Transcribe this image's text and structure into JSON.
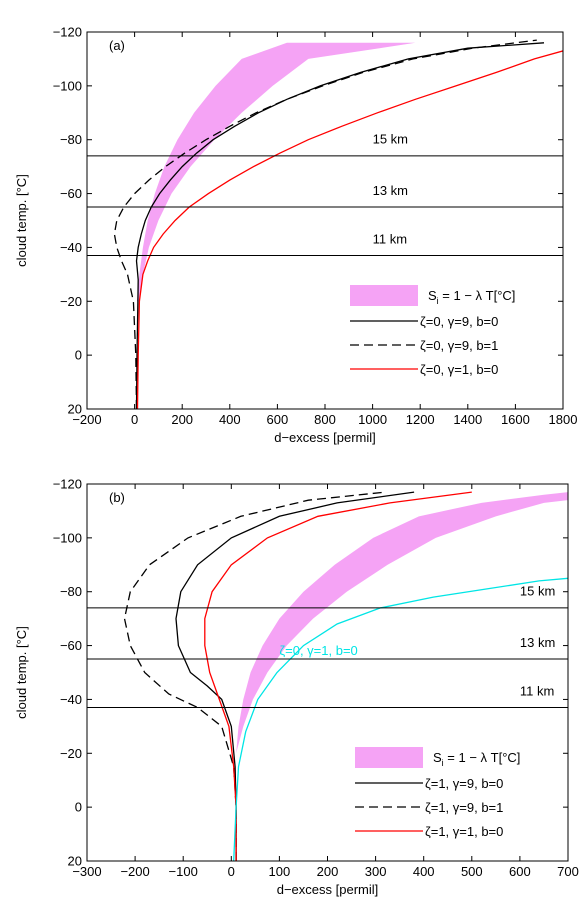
{
  "chart_data": [
    {
      "type": "line",
      "panel_label": "(a)",
      "xlabel": "d−excess [permil]",
      "ylabel": "cloud temp. [°C]",
      "xlim": [
        -200,
        1800
      ],
      "ylim": [
        20,
        -120
      ],
      "y_inverted": true,
      "xticks": [
        -200,
        0,
        200,
        400,
        600,
        800,
        1000,
        1200,
        1400,
        1600,
        1800
      ],
      "xtick_labels": [
        "−200",
        "0",
        "200",
        "400",
        "600",
        "800",
        "1000",
        "1200",
        "1400",
        "1600",
        "1800"
      ],
      "yticks": [
        -120,
        -100,
        -80,
        -60,
        -40,
        -20,
        0,
        20
      ],
      "ytick_labels": [
        "−120",
        "−100",
        "−80",
        "−60",
        "−40",
        "−20",
        "0",
        "20"
      ],
      "hlines": [
        {
          "y": -74,
          "label": "15 km",
          "label_x": 1000,
          "label_y": -80
        },
        {
          "y": -55,
          "label": "13 km",
          "label_x": 1000,
          "label_y": -61
        },
        {
          "y": -37,
          "label": "11 km",
          "label_x": 1000,
          "label_y": -43
        }
      ],
      "band": {
        "name": "S<sub>i</sub> = 1 − λ T[°C]",
        "name_main": "S",
        "name_sub": "i",
        "name_rest": " = 1 − λ T[°C]",
        "color": "#f5a3f5",
        "lower_edge": [
          [
            10,
            -20
          ],
          [
            20,
            -30
          ],
          [
            35,
            -40
          ],
          [
            55,
            -50
          ],
          [
            85,
            -60
          ],
          [
            125,
            -70
          ],
          [
            180,
            -80
          ],
          [
            250,
            -90
          ],
          [
            340,
            -100
          ],
          [
            450,
            -110
          ],
          [
            640,
            -116
          ]
        ],
        "upper_edge": [
          [
            20,
            -20
          ],
          [
            35,
            -30
          ],
          [
            60,
            -40
          ],
          [
            100,
            -50
          ],
          [
            155,
            -60
          ],
          [
            235,
            -70
          ],
          [
            335,
            -80
          ],
          [
            450,
            -90
          ],
          [
            580,
            -100
          ],
          [
            730,
            -110
          ],
          [
            1180,
            -116
          ]
        ]
      },
      "series": [
        {
          "name": "ζ=0, γ=9, b=0",
          "color": "#000000",
          "dash": "none",
          "points": [
            [
              8,
              20
            ],
            [
              10,
              0
            ],
            [
              14,
              -20
            ],
            [
              15,
              -28
            ],
            [
              10,
              -33
            ],
            [
              8,
              -35
            ],
            [
              15,
              -40
            ],
            [
              28,
              -45
            ],
            [
              45,
              -50
            ],
            [
              70,
              -55
            ],
            [
              105,
              -60
            ],
            [
              150,
              -65
            ],
            [
              200,
              -70
            ],
            [
              260,
              -75
            ],
            [
              330,
              -80
            ],
            [
              420,
              -85
            ],
            [
              520,
              -90
            ],
            [
              640,
              -95
            ],
            [
              780,
              -100
            ],
            [
              950,
              -105
            ],
            [
              1150,
              -110
            ],
            [
              1400,
              -114
            ],
            [
              1720,
              -116
            ]
          ]
        },
        {
          "name": "ζ=0, γ=9, b=1",
          "color": "#000000",
          "dash": "9,5",
          "points": [
            [
              8,
              20
            ],
            [
              5,
              0
            ],
            [
              -5,
              -20
            ],
            [
              -30,
              -30
            ],
            [
              -55,
              -35
            ],
            [
              -75,
              -40
            ],
            [
              -85,
              -45
            ],
            [
              -75,
              -50
            ],
            [
              -45,
              -55
            ],
            [
              0,
              -60
            ],
            [
              60,
              -65
            ],
            [
              130,
              -70
            ],
            [
              210,
              -75
            ],
            [
              300,
              -80
            ],
            [
              400,
              -85
            ],
            [
              510,
              -90
            ],
            [
              640,
              -95
            ],
            [
              790,
              -100
            ],
            [
              960,
              -105
            ],
            [
              1170,
              -110
            ],
            [
              1420,
              -114
            ],
            [
              1690,
              -117
            ]
          ]
        },
        {
          "name": "ζ=0, γ=1, b=0",
          "color": "#ff0000",
          "dash": "none",
          "points": [
            [
              12,
              20
            ],
            [
              15,
              0
            ],
            [
              20,
              -20
            ],
            [
              35,
              -30
            ],
            [
              55,
              -35
            ],
            [
              80,
              -40
            ],
            [
              120,
              -45
            ],
            [
              170,
              -50
            ],
            [
              230,
              -55
            ],
            [
              310,
              -60
            ],
            [
              400,
              -65
            ],
            [
              500,
              -70
            ],
            [
              610,
              -75
            ],
            [
              730,
              -80
            ],
            [
              870,
              -85
            ],
            [
              1020,
              -90
            ],
            [
              1180,
              -95
            ],
            [
              1350,
              -100
            ],
            [
              1520,
              -105
            ],
            [
              1680,
              -110
            ],
            [
              1800,
              -113
            ]
          ]
        }
      ],
      "legend_position": "lower-right"
    },
    {
      "type": "line",
      "panel_label": "(b)",
      "xlabel": "d−excess [permil]",
      "ylabel": "cloud temp. [°C]",
      "xlim": [
        -300,
        700
      ],
      "ylim": [
        20,
        -120
      ],
      "y_inverted": true,
      "xticks": [
        -300,
        -200,
        -100,
        0,
        100,
        200,
        300,
        400,
        500,
        600,
        700
      ],
      "xtick_labels": [
        "−300",
        "−200",
        "−100",
        "0",
        "100",
        "200",
        "300",
        "400",
        "500",
        "600",
        "700"
      ],
      "yticks": [
        -120,
        -100,
        -80,
        -60,
        -40,
        -20,
        0,
        20
      ],
      "ytick_labels": [
        "−120",
        "−100",
        "−80",
        "−60",
        "−40",
        "−20",
        "0",
        "20"
      ],
      "hlines": [
        {
          "y": -74,
          "label": "15 km",
          "label_x": 600,
          "label_y": -80
        },
        {
          "y": -55,
          "label": "13 km",
          "label_x": 600,
          "label_y": -61
        },
        {
          "y": -37,
          "label": "11 km",
          "label_x": 600,
          "label_y": -43
        }
      ],
      "band": {
        "name": "S<sub>i</sub> = 1 − λ T[°C]",
        "name_main": "S",
        "name_sub": "i",
        "name_rest": " = 1 − λ T[°C]",
        "color": "#f5a3f5",
        "lower_edge": [
          [
            10,
            -20
          ],
          [
            15,
            -30
          ],
          [
            25,
            -40
          ],
          [
            40,
            -50
          ],
          [
            65,
            -60
          ],
          [
            100,
            -70
          ],
          [
            150,
            -80
          ],
          [
            215,
            -90
          ],
          [
            295,
            -100
          ],
          [
            390,
            -108
          ],
          [
            520,
            -113
          ],
          [
            650,
            -116
          ],
          [
            700,
            -117
          ]
        ],
        "upper_edge": [
          [
            10,
            -20
          ],
          [
            25,
            -30
          ],
          [
            45,
            -40
          ],
          [
            75,
            -50
          ],
          [
            115,
            -60
          ],
          [
            170,
            -70
          ],
          [
            240,
            -80
          ],
          [
            325,
            -90
          ],
          [
            425,
            -100
          ],
          [
            550,
            -108
          ],
          [
            650,
            -113
          ],
          [
            700,
            -114
          ]
        ]
      },
      "series": [
        {
          "name": "ζ=1, γ=9, b=0",
          "color": "#000000",
          "dash": "none",
          "points": [
            [
              10,
              20
            ],
            [
              10,
              0
            ],
            [
              8,
              -15
            ],
            [
              0,
              -30
            ],
            [
              -20,
              -40
            ],
            [
              -50,
              -45
            ],
            [
              -85,
              -50
            ],
            [
              -110,
              -60
            ],
            [
              -115,
              -70
            ],
            [
              -105,
              -80
            ],
            [
              -70,
              -90
            ],
            [
              0,
              -100
            ],
            [
              100,
              -108
            ],
            [
              220,
              -113
            ],
            [
              380,
              -117
            ]
          ]
        },
        {
          "name": "ζ=1, γ=9, b=1",
          "color": "#000000",
          "dash": "9,5",
          "points": [
            [
              10,
              20
            ],
            [
              10,
              0
            ],
            [
              5,
              -15
            ],
            [
              -20,
              -30
            ],
            [
              -70,
              -37
            ],
            [
              -130,
              -42
            ],
            [
              -180,
              -50
            ],
            [
              -210,
              -60
            ],
            [
              -222,
              -70
            ],
            [
              -210,
              -80
            ],
            [
              -170,
              -90
            ],
            [
              -90,
              -100
            ],
            [
              20,
              -108
            ],
            [
              160,
              -114
            ],
            [
              320,
              -117
            ]
          ]
        },
        {
          "name": "ζ=1, γ=1, b=0",
          "color": "#ff0000",
          "dash": "none",
          "points": [
            [
              10,
              20
            ],
            [
              10,
              0
            ],
            [
              5,
              -15
            ],
            [
              -5,
              -30
            ],
            [
              -25,
              -40
            ],
            [
              -45,
              -50
            ],
            [
              -55,
              -60
            ],
            [
              -55,
              -70
            ],
            [
              -40,
              -80
            ],
            [
              0,
              -90
            ],
            [
              75,
              -100
            ],
            [
              180,
              -108
            ],
            [
              330,
              -113
            ],
            [
              500,
              -117
            ]
          ]
        },
        {
          "name": "ζ=0, γ=1, b=0",
          "color": "#00e5e5",
          "dash": "none",
          "inline_label": true,
          "label_x": 100,
          "label_y": -58,
          "points": [
            [
              5,
              20
            ],
            [
              10,
              0
            ],
            [
              15,
              -15
            ],
            [
              30,
              -28
            ],
            [
              55,
              -40
            ],
            [
              95,
              -50
            ],
            [
              150,
              -60
            ],
            [
              220,
              -68
            ],
            [
              310,
              -74
            ],
            [
              420,
              -78
            ],
            [
              530,
              -81
            ],
            [
              640,
              -84
            ],
            [
              700,
              -85
            ]
          ]
        }
      ],
      "legend_position": "lower-right"
    }
  ]
}
